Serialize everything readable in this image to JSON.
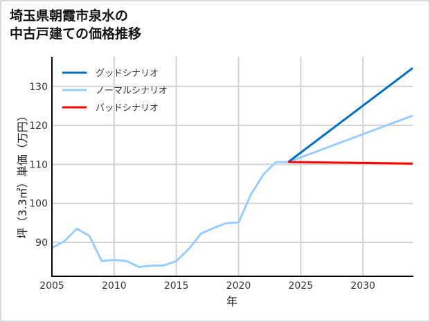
{
  "title_lines": [
    "埼玉県朝霞市泉水の",
    "中古戸建ての価格推移"
  ],
  "chart_data": {
    "type": "line",
    "title": "埼玉県朝霞市泉水の中古戸建ての価格推移",
    "xlabel": "年",
    "ylabel": "坪（3.3㎡）単価（万円）",
    "xlim": [
      2005,
      2034
    ],
    "ylim": [
      81.3,
      137.6
    ],
    "xticks": [
      2005,
      2010,
      2015,
      2020,
      2025,
      2030
    ],
    "yticks": [
      90,
      100,
      110,
      120,
      130
    ],
    "grid": true,
    "legend_position": "upper left",
    "series": [
      {
        "name": "グッドシナリオ",
        "color": "#0070c0",
        "x": [
          2024,
          2034
        ],
        "values": [
          110.6,
          134.7
        ]
      },
      {
        "name": "ノーマルシナリオ",
        "color": "#99ccff",
        "x": [
          2005,
          2006,
          2007,
          2008,
          2009,
          2010,
          2011,
          2012,
          2013,
          2014,
          2015,
          2016,
          2017,
          2018,
          2019,
          2020,
          2021,
          2022,
          2023,
          2024,
          2034
        ],
        "values": [
          88.6,
          90.3,
          93.5,
          91.7,
          85.2,
          85.5,
          85.2,
          83.7,
          84.0,
          84.1,
          85.2,
          88.3,
          92.3,
          93.7,
          94.9,
          95.1,
          102.3,
          107.4,
          110.6,
          110.6,
          122.5
        ]
      },
      {
        "name": "バッドシナリオ",
        "color": "#ff0000",
        "x": [
          2024,
          2034
        ],
        "values": [
          110.6,
          110.2
        ]
      }
    ]
  }
}
